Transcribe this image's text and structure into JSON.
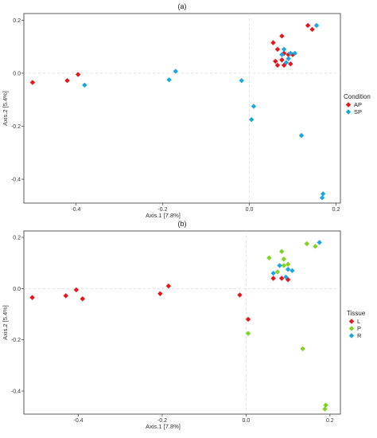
{
  "chart_data": [
    {
      "type": "scatter",
      "title": "(a)",
      "xlabel": "Axis.1 [7.8%]",
      "ylabel": "Axis.2 [5.4%]",
      "xlim": [
        -0.52,
        0.21
      ],
      "ylim": [
        -0.49,
        0.225
      ],
      "xticks": [
        -0.4,
        -0.2,
        0.0,
        0.2
      ],
      "yticks": [
        0.2,
        0.0,
        -0.2,
        -0.4
      ],
      "xtick_labels": [
        "-0.4",
        "-0.2",
        "0.0",
        "0.2"
      ],
      "ytick_labels": [
        "0.2",
        "0.0",
        "-0.2",
        "-0.4"
      ],
      "grid": "dashed zero lines",
      "legend": {
        "title": "Condition",
        "position": "right"
      },
      "series": [
        {
          "name": "AP",
          "color": "#e8141c",
          "points": [
            [
              -0.5,
              -0.035
            ],
            [
              -0.42,
              -0.028
            ],
            [
              -0.395,
              -0.005
            ],
            [
              0.055,
              0.115
            ],
            [
              0.065,
              0.09
            ],
            [
              0.08,
              0.075
            ],
            [
              0.09,
              0.07
            ],
            [
              0.06,
              0.045
            ],
            [
              0.075,
              0.05
            ],
            [
              0.065,
              0.03
            ],
            [
              0.08,
              0.03
            ],
            [
              0.095,
              0.035
            ],
            [
              0.1,
              0.07
            ],
            [
              0.075,
              0.14
            ],
            [
              0.135,
              0.18
            ],
            [
              0.145,
              0.165
            ]
          ]
        },
        {
          "name": "SP",
          "color": "#1aa7e0",
          "points": [
            [
              -0.38,
              -0.045
            ],
            [
              -0.185,
              -0.025
            ],
            [
              -0.17,
              0.007
            ],
            [
              -0.018,
              -0.028
            ],
            [
              0.01,
              -0.125
            ],
            [
              0.005,
              -0.175
            ],
            [
              0.12,
              -0.235
            ],
            [
              0.09,
              0.055
            ],
            [
              0.075,
              0.07
            ],
            [
              0.095,
              0.075
            ],
            [
              0.105,
              0.075
            ],
            [
              0.08,
              0.09
            ],
            [
              0.085,
              0.04
            ],
            [
              0.155,
              0.18
            ],
            [
              0.17,
              -0.455
            ],
            [
              0.168,
              -0.47
            ]
          ]
        }
      ]
    },
    {
      "type": "scatter",
      "title": "(b)",
      "xlabel": "Axis.1 [7.8%]",
      "ylabel": "Axis.2 [5.4%]",
      "xlim": [
        -0.53,
        0.225
      ],
      "ylim": [
        -0.49,
        0.225
      ],
      "xticks": [
        -0.4,
        -0.2,
        0.0,
        0.2
      ],
      "yticks": [
        0.2,
        0.0,
        -0.2,
        -0.4
      ],
      "xtick_labels": [
        "-0.4",
        "-0.2",
        "0.0",
        "0.2"
      ],
      "ytick_labels": [
        "0.2",
        "0.0",
        "-0.2",
        "-0.4"
      ],
      "grid": "dashed zero lines",
      "legend": {
        "title": "Tissue",
        "position": "right"
      },
      "series": [
        {
          "name": "L",
          "color": "#e8141c",
          "points": [
            [
              -0.51,
              -0.035
            ],
            [
              -0.43,
              -0.028
            ],
            [
              -0.405,
              -0.005
            ],
            [
              -0.39,
              -0.04
            ],
            [
              -0.205,
              -0.02
            ],
            [
              -0.185,
              0.01
            ],
            [
              -0.015,
              -0.025
            ],
            [
              0.005,
              -0.12
            ],
            [
              0.065,
              0.04
            ],
            [
              0.085,
              0.04
            ],
            [
              0.1,
              0.035
            ]
          ]
        },
        {
          "name": "P",
          "color": "#7ed321",
          "points": [
            [
              0.005,
              -0.175
            ],
            [
              0.055,
              0.12
            ],
            [
              0.075,
              0.065
            ],
            [
              0.085,
              0.145
            ],
            [
              0.09,
              0.09
            ],
            [
              0.1,
              0.095
            ],
            [
              0.09,
              0.115
            ],
            [
              0.145,
              0.175
            ],
            [
              0.165,
              0.165
            ],
            [
              0.135,
              -0.235
            ],
            [
              0.19,
              -0.455
            ],
            [
              0.188,
              -0.47
            ]
          ]
        },
        {
          "name": "R",
          "color": "#1aa7e0",
          "points": [
            [
              0.065,
              0.06
            ],
            [
              0.08,
              0.09
            ],
            [
              0.1,
              0.075
            ],
            [
              0.11,
              0.07
            ],
            [
              0.095,
              0.045
            ],
            [
              0.175,
              0.18
            ]
          ]
        }
      ]
    }
  ]
}
